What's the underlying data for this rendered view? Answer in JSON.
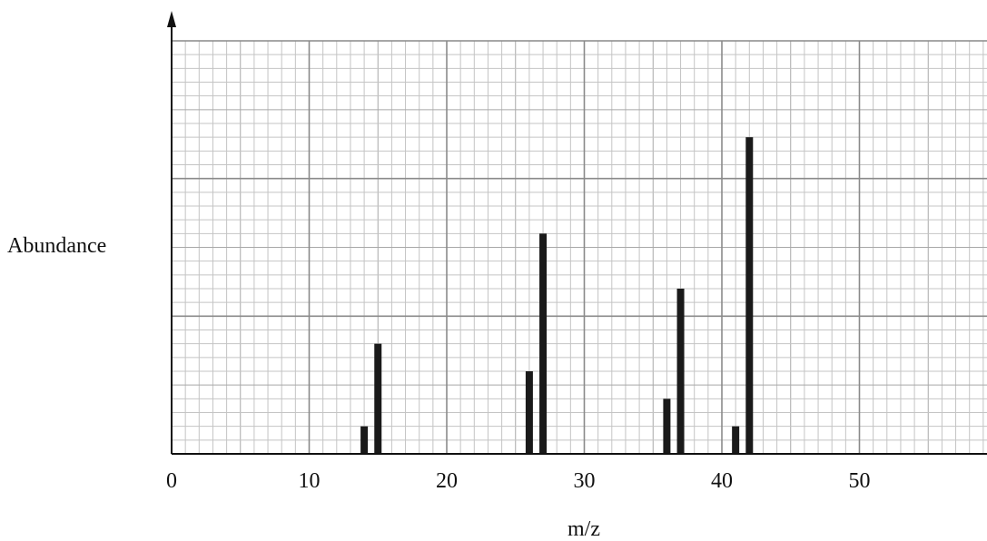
{
  "chart_data": {
    "type": "bar",
    "title": "",
    "xlabel": "m/z",
    "ylabel": "Abundance",
    "xlim": [
      0,
      59
    ],
    "ylim": [
      0,
      15
    ],
    "x_ticks": [
      "0",
      "10",
      "20",
      "30",
      "40",
      "50"
    ],
    "grid": true,
    "series": [
      {
        "points": [
          {
            "x": 14,
            "y": 1
          },
          {
            "x": 15,
            "y": 4
          },
          {
            "x": 26,
            "y": 3
          },
          {
            "x": 27,
            "y": 8
          },
          {
            "x": 36,
            "y": 2
          },
          {
            "x": 37,
            "y": 6
          },
          {
            "x": 41,
            "y": 1
          },
          {
            "x": 42,
            "y": 11.5
          }
        ]
      }
    ]
  }
}
